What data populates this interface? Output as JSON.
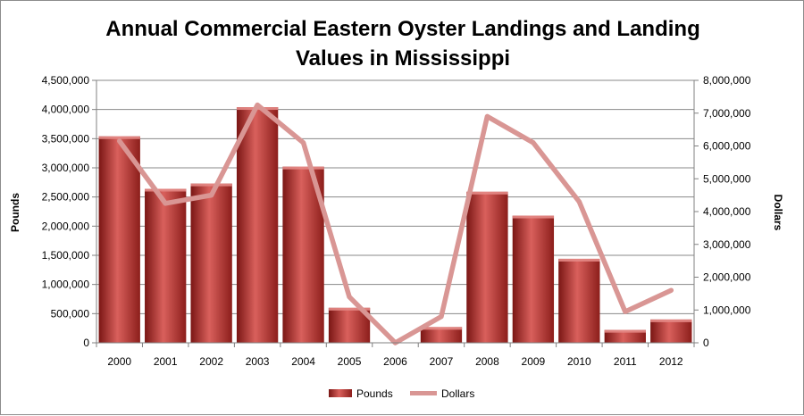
{
  "chart_data": {
    "type": "bar",
    "title_lines": [
      "Annual Commercial Eastern Oyster Landings and Landing",
      "Values in Mississippi"
    ],
    "categories": [
      "2000",
      "2001",
      "2002",
      "2003",
      "2004",
      "2005",
      "2006",
      "2007",
      "2008",
      "2009",
      "2010",
      "2011",
      "2012"
    ],
    "series": [
      {
        "name": "Pounds",
        "type": "bar",
        "axis": "left",
        "color": "#c0504d",
        "values": [
          3540000,
          2640000,
          2730000,
          4040000,
          3020000,
          600000,
          0,
          270000,
          2590000,
          2180000,
          1440000,
          220000,
          400000
        ]
      },
      {
        "name": "Dollars",
        "type": "line",
        "axis": "right",
        "color": "#d99694",
        "values": [
          6150000,
          4250000,
          4500000,
          7250000,
          6100000,
          1400000,
          0,
          800000,
          6900000,
          6100000,
          4300000,
          950000,
          1600000
        ]
      }
    ],
    "ylabel": "Pounds",
    "y2label": "Dollars",
    "ylim": [
      0,
      4500000
    ],
    "y2lim": [
      0,
      8000000
    ],
    "yticks": [
      "4,500,000",
      "4,000,000",
      "3,500,000",
      "3,000,000",
      "2,500,000",
      "2,000,000",
      "1,500,000",
      "1,000,000",
      "500,000",
      "0"
    ],
    "y2ticks": [
      "8,000,000",
      "7,000,000",
      "6,000,000",
      "5,000,000",
      "4,000,000",
      "3,000,000",
      "2,000,000",
      "1,000,000",
      "0"
    ],
    "grid": true,
    "legend_position": "bottom"
  }
}
